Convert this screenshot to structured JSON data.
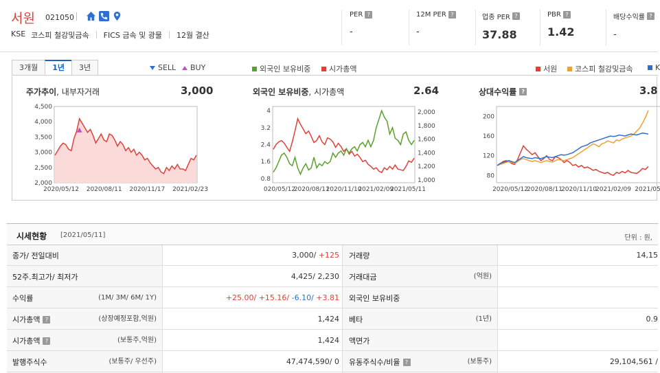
{
  "company": {
    "name": "서원",
    "code": "021050",
    "market": "KSE",
    "industry": "코스피 철강및금속",
    "fics": "FICS 금속 및 광물",
    "settlement": "12월 결산"
  },
  "icons": [
    "home-icon",
    "phone-icon",
    "map-pin-icon"
  ],
  "metrics": [
    {
      "label": "PER",
      "value": "-"
    },
    {
      "label": "12M PER",
      "value": "-"
    },
    {
      "label": "업종 PER",
      "value": "37.88"
    },
    {
      "label": "PBR",
      "value": "1.42"
    },
    {
      "label": "배당수익률",
      "value": "-"
    }
  ],
  "tabs": [
    "3개월",
    "1년",
    "3년"
  ],
  "active_tab": "1년",
  "legend": {
    "sell": "SELL",
    "buy": "BUY",
    "foreign": "외국인 보유비중",
    "market_cap": "시가총액",
    "stock": "서원",
    "sector": "코스피 철강및금속",
    "index": "K"
  },
  "colors": {
    "red": "#e0403a",
    "green": "#5aa02c",
    "orange": "#f0a030",
    "blue": "#2f6fcf",
    "fill_red": "#fbdada"
  },
  "charts": {
    "price": {
      "title": "주가추이",
      "subtitle": ", 내부자거래",
      "value": "3,000"
    },
    "foreign": {
      "title": "외국인 보유비중",
      "subtitle": ", 시가총액",
      "value": "2.64"
    },
    "relative": {
      "title": "상대수익률",
      "value": "3.8"
    }
  },
  "chart_data": [
    {
      "type": "area",
      "title": "주가추이, 내부자거래",
      "x_ticks": [
        "2020/05/12",
        "2020/08/11",
        "2020/11/17",
        "2021/02/23"
      ],
      "y_ticks": [
        "4,500",
        "4,000",
        "3,500",
        "3,000",
        "2,500",
        "2,000"
      ],
      "ylim": [
        2000,
        4500
      ],
      "series": [
        {
          "values": [
            2900,
            3050,
            3200,
            3300,
            3250,
            3100,
            3050,
            3450,
            3700,
            4100,
            3950,
            3800,
            3650,
            3750,
            3550,
            3300,
            3450,
            3600,
            3400,
            3350,
            3600,
            3550,
            3400,
            3200,
            3350,
            3250,
            3050,
            3150,
            3000,
            3100,
            2900,
            3000,
            2900,
            2750,
            2800,
            2650,
            2550,
            2450,
            2500,
            2350,
            2300,
            2500,
            2400,
            2550,
            2450,
            2600,
            2450,
            2450,
            2400,
            2600,
            2800,
            2750,
            2900
          ]
        }
      ]
    },
    {
      "type": "line",
      "title": "외국인 보유비중, 시가총액",
      "x_ticks": [
        "020/05/12",
        "2020/08/11",
        "2020/11/10",
        "2021/02/09",
        "2021/05/11"
      ],
      "y_ticks_left": [
        "4",
        "3.2",
        "2.4",
        "1.6",
        "0.8"
      ],
      "y_ticks_right": [
        "2,000",
        "1,800",
        "1,600",
        "1,400",
        "1,200",
        "1,000"
      ],
      "ylim_left": [
        0.6,
        4.2
      ],
      "ylim_right": [
        960,
        2080
      ],
      "series": [
        {
          "name": "외국인 보유비중",
          "axis": "left",
          "values": [
            1.1,
            1.3,
            1.6,
            1.9,
            2.0,
            1.8,
            1.5,
            1.4,
            1.8,
            1.3,
            1.0,
            1.3,
            1.5,
            1.2,
            1.3,
            1.8,
            1.3,
            1.5,
            1.4,
            1.6,
            1.5,
            1.6,
            2.0,
            1.8,
            2.0,
            2.1,
            1.9,
            2.2,
            2.0,
            2.2,
            2.3,
            2.1,
            2.4,
            2.5,
            2.3,
            2.6,
            2.3,
            2.6,
            3.2,
            3.6,
            4.0,
            3.7,
            3.5,
            2.9,
            3.2,
            2.7,
            2.6,
            2.4,
            2.9,
            3.0,
            2.6,
            2.4,
            2.6
          ]
        },
        {
          "name": "시가총액",
          "axis": "right",
          "values": [
            1450,
            1520,
            1560,
            1580,
            1540,
            1480,
            1420,
            1560,
            1720,
            1900,
            1820,
            1750,
            1680,
            1720,
            1640,
            1550,
            1580,
            1650,
            1560,
            1520,
            1620,
            1600,
            1560,
            1480,
            1540,
            1490,
            1420,
            1460,
            1380,
            1420,
            1350,
            1380,
            1330,
            1270,
            1290,
            1230,
            1200,
            1160,
            1180,
            1130,
            1110,
            1180,
            1150,
            1200,
            1160,
            1220,
            1160,
            1150,
            1140,
            1200,
            1280,
            1260,
            1320
          ]
        }
      ]
    },
    {
      "type": "line",
      "title": "상대수익률",
      "x_ticks": [
        "2020/05/12",
        "2020/08/11",
        "2020/11/10",
        "2021/02/09",
        "2021/05"
      ],
      "y_ticks": [
        "200",
        "160",
        "120",
        "80"
      ],
      "ylim": [
        65,
        220
      ],
      "series": [
        {
          "name": "서원",
          "values": [
            100,
            104,
            108,
            110,
            108,
            104,
            102,
            112,
            126,
            140,
            133,
            128,
            122,
            126,
            118,
            110,
            114,
            120,
            112,
            110,
            118,
            116,
            112,
            106,
            110,
            106,
            100,
            102,
            97,
            100,
            95,
            97,
            94,
            90,
            92,
            88,
            86,
            84,
            86,
            82,
            80,
            86,
            84,
            88,
            85,
            90,
            86,
            85,
            84,
            88,
            94,
            92,
            98
          ]
        },
        {
          "name": "코스피 철강및금속",
          "values": [
            100,
            102,
            104,
            106,
            108,
            106,
            104,
            108,
            112,
            114,
            112,
            110,
            108,
            110,
            108,
            106,
            108,
            110,
            108,
            107,
            110,
            112,
            111,
            110,
            112,
            114,
            116,
            120,
            124,
            128,
            132,
            136,
            140,
            144,
            142,
            138,
            144,
            146,
            150,
            148,
            146,
            152,
            150,
            154,
            156,
            158,
            160,
            164,
            170,
            176,
            186,
            198,
            212
          ]
        },
        {
          "name": "K",
          "values": [
            100,
            104,
            106,
            108,
            110,
            108,
            106,
            110,
            114,
            118,
            116,
            115,
            114,
            116,
            115,
            114,
            116,
            118,
            117,
            116,
            118,
            120,
            122,
            121,
            122,
            124,
            126,
            130,
            134,
            138,
            140,
            142,
            146,
            148,
            150,
            152,
            154,
            156,
            158,
            160,
            159,
            160,
            162,
            161,
            160,
            162,
            164,
            163,
            162,
            164,
            166,
            165,
            164
          ]
        }
      ]
    }
  ],
  "table": {
    "title": "시세현황",
    "date": "[2021/05/11]",
    "unit": "단위 : 원, ",
    "rows": [
      {
        "label1": "종가/ 전일대비",
        "sub1": "",
        "val1a": "3,000/ ",
        "val1b": "+125",
        "label2": "거래량",
        "sub2": "",
        "val2": "14,15"
      },
      {
        "label1": "52주.최고가/ 최저가",
        "sub1": "",
        "val1a": "4,425/ 2,230",
        "val1b": "",
        "label2": "거래대금",
        "sub2": "(억원)",
        "val2": ""
      },
      {
        "label1": "수익률",
        "sub1": "(1M/ 3M/ 6M/ 1Y)",
        "ret_1m": "+25.00/ ",
        "ret_3m": "+15.16/ ",
        "ret_6m": "-6.10/ ",
        "ret_1y": "+3.81",
        "label2": "외국인 보유비중",
        "sub2": "",
        "val2": ""
      },
      {
        "label1": "시가총액",
        "sub1": "(상장예정포함,억원)",
        "val1a": "1,424",
        "val1b": "",
        "label2": "베타",
        "sub2": "(1년)",
        "val2": "0.9"
      },
      {
        "label1": "시가총액",
        "sub1": "(보통주,억원)",
        "val1a": "1,424",
        "val1b": "",
        "label2": "액면가",
        "sub2": "",
        "val2": ""
      },
      {
        "label1": "발행주식수",
        "sub1": "(보통주/ 우선주)",
        "val1a": "47,474,590/ 0",
        "val1b": "",
        "label2": "유동주식수/비율",
        "sub2": "(보통주)",
        "val2": "29,104,561 /"
      }
    ]
  }
}
